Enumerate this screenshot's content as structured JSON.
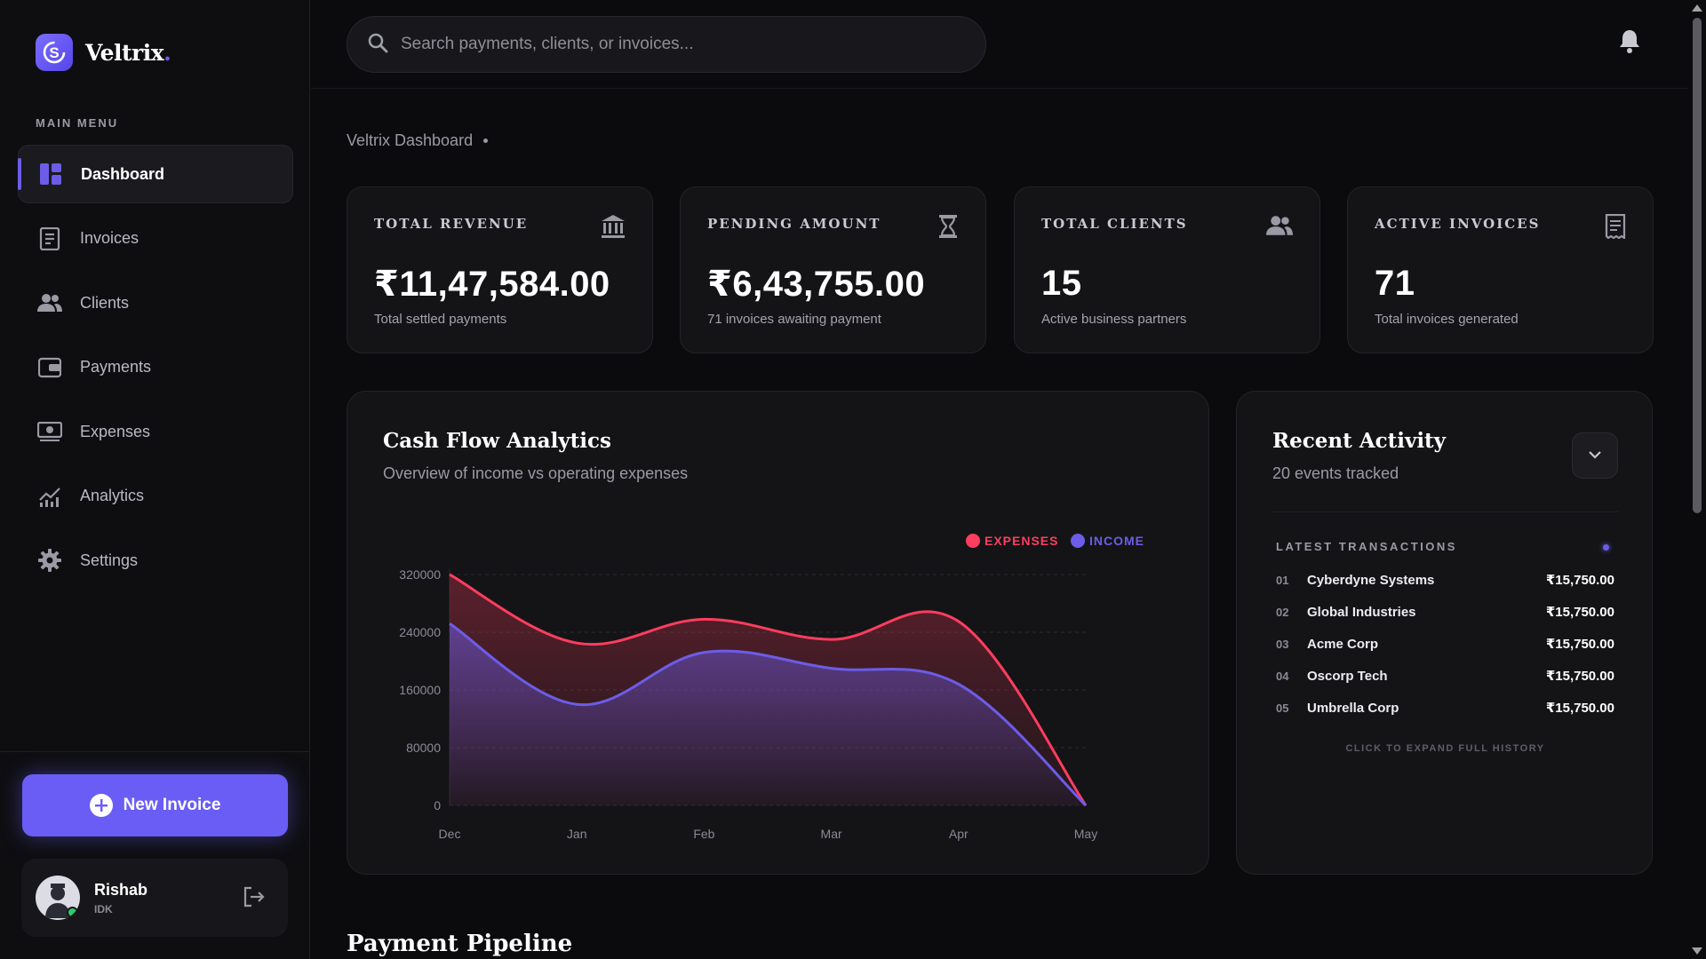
{
  "brand": {
    "name": "Veltrix",
    "dot": ".",
    "logo_letter": "S"
  },
  "sidebar": {
    "menu_title": "MAIN MENU",
    "items": [
      {
        "label": "Dashboard",
        "icon": "dashboard-icon",
        "active": true
      },
      {
        "label": "Invoices",
        "icon": "invoice-icon"
      },
      {
        "label": "Clients",
        "icon": "users-icon"
      },
      {
        "label": "Payments",
        "icon": "wallet-icon"
      },
      {
        "label": "Expenses",
        "icon": "money-icon"
      },
      {
        "label": "Analytics",
        "icon": "analytics-icon"
      },
      {
        "label": "Settings",
        "icon": "gear-icon"
      }
    ],
    "new_invoice_label": "New Invoice",
    "user": {
      "name": "Rishab",
      "role": "IDK"
    }
  },
  "search": {
    "placeholder": "Search payments, clients, or invoices..."
  },
  "breadcrumb": {
    "label": "Veltrix Dashboard"
  },
  "stats": [
    {
      "title": "TOTAL REVENUE",
      "value": "₹11,47,584.00",
      "sub": "Total settled payments",
      "icon": "bank-icon"
    },
    {
      "title": "PENDING AMOUNT",
      "value": "₹6,43,755.00",
      "sub": "71 invoices awaiting payment",
      "icon": "hourglass-icon"
    },
    {
      "title": "TOTAL CLIENTS",
      "value": "15",
      "sub": "Active business partners",
      "icon": "users-icon"
    },
    {
      "title": "ACTIVE INVOICES",
      "value": "71",
      "sub": "Total invoices generated",
      "icon": "receipt-icon"
    }
  ],
  "cashflow": {
    "title": "Cash Flow Analytics",
    "subtitle": "Overview of income vs operating expenses"
  },
  "chart_data": {
    "type": "area",
    "categories": [
      "Dec",
      "Jan",
      "Feb",
      "Mar",
      "Apr",
      "May"
    ],
    "series": [
      {
        "name": "EXPENSES",
        "color": "#ff3d5e",
        "values": [
          320000,
          225000,
          258000,
          230000,
          255000,
          0
        ]
      },
      {
        "name": "INCOME",
        "color": "#6c5ce7",
        "values": [
          252000,
          140000,
          212000,
          190000,
          168000,
          0
        ]
      }
    ],
    "ylim": [
      0,
      320000
    ],
    "yticks": [
      "320000",
      "240000",
      "160000",
      "80000",
      "0"
    ],
    "legend": "top-right",
    "grid": true
  },
  "activity": {
    "title": "Recent Activity",
    "subtitle": "20 events tracked",
    "latest_title": "LATEST TRANSACTIONS",
    "transactions": [
      {
        "num": "01",
        "name": "Cyberdyne Systems",
        "amount": "₹15,750.00"
      },
      {
        "num": "02",
        "name": "Global Industries",
        "amount": "₹15,750.00"
      },
      {
        "num": "03",
        "name": "Acme Corp",
        "amount": "₹15,750.00"
      },
      {
        "num": "04",
        "name": "Oscorp Tech",
        "amount": "₹15,750.00"
      },
      {
        "num": "05",
        "name": "Umbrella Corp",
        "amount": "₹15,750.00"
      }
    ],
    "expand_label": "CLICK TO EXPAND FULL HISTORY"
  },
  "pipeline": {
    "title": "Payment Pipeline"
  }
}
